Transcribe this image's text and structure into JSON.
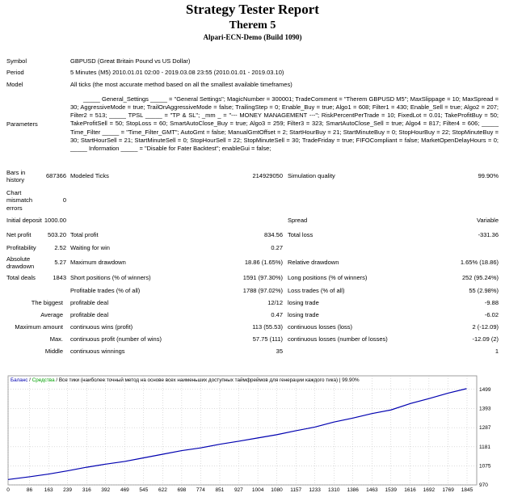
{
  "header": {
    "title": "Strategy Tester Report",
    "subtitle": "Therem 5",
    "server": "Alpari-ECN-Demo (Build 1090)"
  },
  "info": [
    {
      "label": "Symbol",
      "value": "GBPUSD (Great Britain Pound vs US Dollar)"
    },
    {
      "label": "Period",
      "value": "5 Minutes (M5) 2010.01.01 02:00 - 2019.03.08 23:55 (2010.01.01 - 2019.03.10)"
    },
    {
      "label": "Model",
      "value": "All ticks (the most accurate method based on all the smallest available timeframes)"
    },
    {
      "label": "Parameters",
      "value": "_____ General_Settings _____ = \"General Settings\"; MagicNumber = 300001; TradeComment = \"Therem GBPUSD M5\"; MaxSlippage = 10; MaxSpread = 30; AggressiveMode = true; TrailOnAggressiveMode = false; TrailingStep = 0; Enable_Buy = true; Algo1 = 608; Filter1 = 430; Enable_Sell = true; Algo2 = 207; Filter2 = 513; _____ TPSL _____ = \"TP & SL\"; _mm _ = \"--- MONEY MANAGEMENT ---\"; RiskPercentPerTrade = 10; FixedLot = 0.01; TakeProfitBuy = 50; TakeProfitSell = 50; StopLoss = 60; SmartAutoClose_Buy = true; Algo3 = 259; Filter3 = 323; SmartAutoClose_Sell = true; Algo4 = 817; Filter4 = 606; _____ Time_Filter _____ = \"Time_Filter_GMT\"; AutoGmt = false; ManualGmtOffset = 2; StartHourBuy = 21; StartMinuteBuy = 0; StopHourBuy = 22; StopMinuteBuy = 30; StartHourSell = 21; StartMinuteSell = 0; StopHourSell = 22; StopMinuteSell = 30; TradeFriday = true; FIFOCompliant = false; MarketOpenDelayHours = 0; _____ Information _____ = \"Disable for Fater Backtest\"; enableGui = false;"
    }
  ],
  "stats": [
    {
      "label": "Bars in history",
      "value": "687366",
      "label2": "Modeled Ticks",
      "value2": "214929050",
      "label3": "Simulation quality",
      "value3": "99.90%"
    },
    {
      "label": "Chart mismatch errors",
      "value": "0"
    },
    {
      "label": "Initial deposit",
      "value": "1000.00",
      "label3": "Spread",
      "value3": "Variable"
    },
    {
      "label": "Net profit",
      "value": "503.20",
      "label2": "Total profit",
      "value2": "834.56",
      "label3": "Total loss",
      "value3": "-331.36"
    },
    {
      "label": "Profitability",
      "value": "2.52",
      "label2": "Waiting for win",
      "value2": "0.27"
    },
    {
      "label": "Absolute drawdown",
      "value": "5.27",
      "label2": "Maximum drawdown",
      "value2": "18.86 (1.65%)",
      "label3": "Relative drawdown",
      "value3": "1.65% (18.86)"
    },
    {
      "label": "Total deals",
      "value": "1843",
      "label2": "Short positions (% of winners)",
      "value2": "1591 (97.30%)",
      "label3": "Long positions (% of winners)",
      "value3": "252 (95.24%)"
    },
    {
      "label2": "Profitable trades (% of all)",
      "value2": "1788 (97.02%)",
      "label3": "Loss trades (% of all)",
      "value3": "55 (2.98%)"
    },
    {
      "label": "The biggest",
      "label2": "profitable deal",
      "value2": "12/12",
      "label3": "losing trade",
      "value3": "-9.88"
    },
    {
      "label": "Average",
      "label2": "profitable deal",
      "value2": "0.47",
      "label3": "losing trade",
      "value3": "-6.02"
    },
    {
      "label": "Maximum amount",
      "label2": "continuous wins (profit)",
      "value2": "113 (55.53)",
      "label3": "continuous losses (loss)",
      "value3": "2 (-12.09)"
    },
    {
      "label": "Max.",
      "label2": "continuous profit (number of wins)",
      "value2": "57.75 (111)",
      "label3": "continuous losses (number of losses)",
      "value3": "-12.09 (2)"
    },
    {
      "label": "Middle",
      "label2": "continuous winnings",
      "value2": "35",
      "value3": "1"
    }
  ],
  "chart_data": {
    "type": "line",
    "subtitle": "Все тики (наиболее точный метод на основе всех наименьших доступных таймфреймов для генерации каждого тика) | 99.90%",
    "equity_name": "Средства",
    "equity_color": "#00a000",
    "x": [
      0,
      86,
      163,
      239,
      316,
      392,
      469,
      545,
      622,
      698,
      774,
      851,
      927,
      1004,
      1080,
      1157,
      1233,
      1310,
      1386,
      1463,
      1539,
      1616,
      1692,
      1769,
      1843
    ],
    "series": [
      {
        "name": "Баланс",
        "color": "#0000b0",
        "values": [
          1000,
          1015,
          1030,
          1048,
          1068,
          1085,
          1100,
          1120,
          1140,
          1160,
          1175,
          1195,
          1212,
          1230,
          1248,
          1270,
          1290,
          1318,
          1340,
          1365,
          1385,
          1420,
          1448,
          1478,
          1503
        ]
      }
    ],
    "xlim": [
      0,
      1884
    ],
    "ylim": [
      970,
      1574
    ],
    "xticks": [
      0,
      86,
      163,
      239,
      316,
      392,
      469,
      545,
      622,
      698,
      774,
      851,
      927,
      1004,
      1080,
      1157,
      1233,
      1310,
      1386,
      1463,
      1539,
      1616,
      1692,
      1769,
      1845
    ],
    "yticks": [
      970,
      1075,
      1181,
      1287,
      1393,
      1499
    ],
    "grid": true
  }
}
